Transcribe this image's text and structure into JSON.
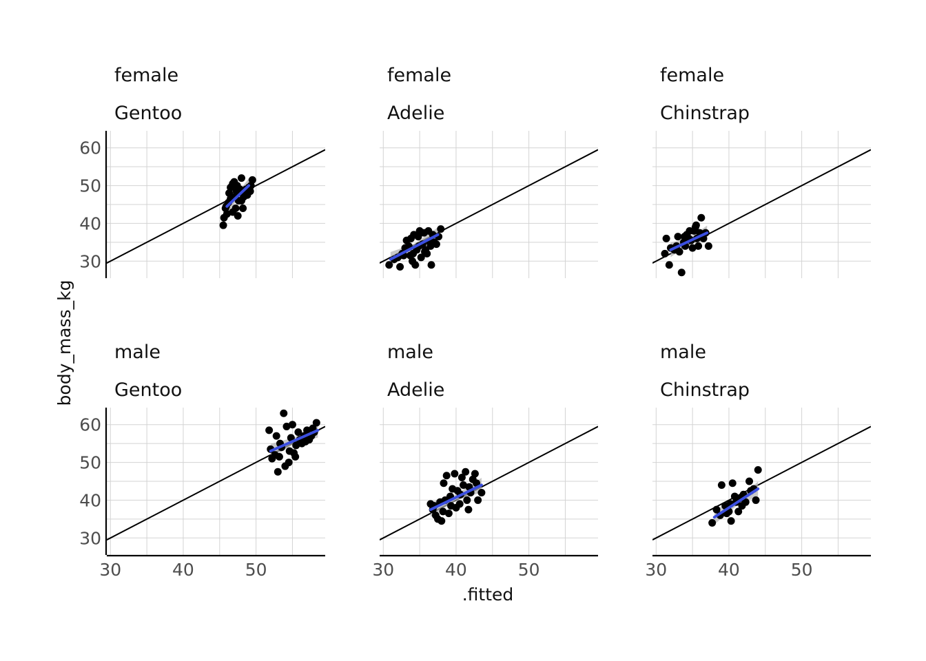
{
  "chart_data": {
    "type": "scatter",
    "xlabel": ".fitted",
    "ylabel": "body_mass_kg",
    "xlim": [
      29.5,
      59.5
    ],
    "ylim": [
      25.5,
      64.5
    ],
    "x_ticks": [
      30,
      40,
      50
    ],
    "y_ticks": [
      30,
      40,
      50,
      60
    ],
    "reference_line": {
      "slope": 1,
      "intercept": 0
    },
    "grid": true,
    "colors": {
      "points": "#000000",
      "fit": "#3b4fe0",
      "band": "#b0b0b0",
      "reference": "#000000"
    },
    "panels": [
      {
        "sex": "female",
        "species": "Gentoo",
        "fit": {
          "x": [
            46.0,
            49.0
          ],
          "y": [
            44.5,
            50.0
          ]
        },
        "points": [
          [
            45.5,
            39.5
          ],
          [
            45.6,
            41.5
          ],
          [
            45.8,
            44.0
          ],
          [
            46.2,
            45.5
          ],
          [
            46.5,
            46.5
          ],
          [
            46.0,
            42.5
          ],
          [
            46.8,
            43.0
          ],
          [
            47.2,
            44.0
          ],
          [
            47.5,
            42.0
          ],
          [
            46.5,
            49.5
          ],
          [
            46.8,
            50.5
          ],
          [
            47.0,
            51.0
          ],
          [
            47.4,
            50.0
          ],
          [
            47.8,
            49.0
          ],
          [
            48.0,
            46.0
          ],
          [
            48.3,
            47.0
          ],
          [
            48.0,
            52.0
          ],
          [
            48.5,
            48.5
          ],
          [
            48.8,
            47.5
          ],
          [
            49.0,
            49.5
          ],
          [
            49.3,
            50.0
          ],
          [
            49.5,
            51.5
          ],
          [
            49.2,
            48.5
          ],
          [
            47.0,
            47.0
          ],
          [
            47.6,
            46.0
          ],
          [
            48.2,
            44.0
          ],
          [
            46.3,
            48.0
          ],
          [
            47.3,
            48.5
          ],
          [
            45.9,
            44.5
          ],
          [
            48.6,
            49.0
          ]
        ]
      },
      {
        "sex": "female",
        "species": "Adelie",
        "fit": {
          "x": [
            31.0,
            37.5
          ],
          "y": [
            30.5,
            37.0
          ]
        },
        "points": [
          [
            30.8,
            29.0
          ],
          [
            31.5,
            30.5
          ],
          [
            32.0,
            31.0
          ],
          [
            32.3,
            28.5
          ],
          [
            32.6,
            32.0
          ],
          [
            33.0,
            33.5
          ],
          [
            33.2,
            35.5
          ],
          [
            33.5,
            34.0
          ],
          [
            33.7,
            31.5
          ],
          [
            34.0,
            30.0
          ],
          [
            34.2,
            37.0
          ],
          [
            34.4,
            29.0
          ],
          [
            34.6,
            33.0
          ],
          [
            34.8,
            36.5
          ],
          [
            35.0,
            38.0
          ],
          [
            35.2,
            31.0
          ],
          [
            35.4,
            34.5
          ],
          [
            35.6,
            37.5
          ],
          [
            35.8,
            33.0
          ],
          [
            36.0,
            32.0
          ],
          [
            36.2,
            38.0
          ],
          [
            36.4,
            35.0
          ],
          [
            36.6,
            29.0
          ],
          [
            36.8,
            37.0
          ],
          [
            37.0,
            35.0
          ],
          [
            37.3,
            34.5
          ],
          [
            37.6,
            36.5
          ],
          [
            37.9,
            38.5
          ],
          [
            33.8,
            36.0
          ],
          [
            34.9,
            34.0
          ],
          [
            35.7,
            32.5
          ],
          [
            34.1,
            32.0
          ],
          [
            32.8,
            31.5
          ],
          [
            36.5,
            34.0
          ]
        ]
      },
      {
        "sex": "female",
        "species": "Chinstrap",
        "fit": {
          "x": [
            32.0,
            37.0
          ],
          "y": [
            33.0,
            37.5
          ]
        },
        "points": [
          [
            31.2,
            32.0
          ],
          [
            31.4,
            36.0
          ],
          [
            31.8,
            29.0
          ],
          [
            32.0,
            33.5
          ],
          [
            32.5,
            33.0
          ],
          [
            33.0,
            36.5
          ],
          [
            33.2,
            32.5
          ],
          [
            33.5,
            27.0
          ],
          [
            33.8,
            35.0
          ],
          [
            34.0,
            34.0
          ],
          [
            34.2,
            37.0
          ],
          [
            34.5,
            36.0
          ],
          [
            34.8,
            35.5
          ],
          [
            35.0,
            33.5
          ],
          [
            35.2,
            38.0
          ],
          [
            35.4,
            39.0
          ],
          [
            35.6,
            36.0
          ],
          [
            35.8,
            34.0
          ],
          [
            36.0,
            37.5
          ],
          [
            36.2,
            41.5
          ],
          [
            36.5,
            36.0
          ],
          [
            36.8,
            37.5
          ],
          [
            37.2,
            34.0
          ],
          [
            34.6,
            38.0
          ],
          [
            35.5,
            39.5
          ],
          [
            33.9,
            36.5
          ],
          [
            32.8,
            34.0
          ]
        ]
      },
      {
        "sex": "male",
        "species": "Gentoo",
        "fit": {
          "x": [
            52.0,
            58.5
          ],
          "y": [
            53.0,
            58.5
          ]
        },
        "points": [
          [
            51.8,
            58.5
          ],
          [
            52.0,
            53.5
          ],
          [
            52.2,
            51.0
          ],
          [
            52.6,
            52.0
          ],
          [
            52.8,
            57.0
          ],
          [
            53.0,
            47.5
          ],
          [
            53.2,
            51.5
          ],
          [
            53.5,
            54.0
          ],
          [
            53.8,
            63.0
          ],
          [
            54.0,
            49.0
          ],
          [
            54.2,
            59.5
          ],
          [
            54.5,
            50.0
          ],
          [
            54.8,
            56.5
          ],
          [
            55.0,
            60.0
          ],
          [
            55.2,
            52.5
          ],
          [
            55.5,
            54.5
          ],
          [
            55.8,
            58.0
          ],
          [
            56.0,
            56.0
          ],
          [
            56.3,
            55.0
          ],
          [
            56.6,
            57.0
          ],
          [
            57.0,
            58.5
          ],
          [
            57.3,
            56.0
          ],
          [
            57.6,
            57.0
          ],
          [
            58.0,
            58.0
          ],
          [
            58.3,
            60.5
          ],
          [
            53.3,
            55.0
          ],
          [
            54.6,
            53.0
          ],
          [
            55.4,
            51.5
          ],
          [
            56.8,
            55.5
          ],
          [
            57.8,
            59.0
          ]
        ]
      },
      {
        "sex": "male",
        "species": "Adelie",
        "fit": {
          "x": [
            36.5,
            43.5
          ],
          "y": [
            37.5,
            44.0
          ]
        },
        "points": [
          [
            36.5,
            39.0
          ],
          [
            36.8,
            37.5
          ],
          [
            37.2,
            36.0
          ],
          [
            37.5,
            35.0
          ],
          [
            37.8,
            39.5
          ],
          [
            38.0,
            34.5
          ],
          [
            38.3,
            44.5
          ],
          [
            38.5,
            40.0
          ],
          [
            38.7,
            46.5
          ],
          [
            39.0,
            36.5
          ],
          [
            39.2,
            41.0
          ],
          [
            39.5,
            43.0
          ],
          [
            39.8,
            47.0
          ],
          [
            40.0,
            38.0
          ],
          [
            40.2,
            42.5
          ],
          [
            40.5,
            39.0
          ],
          [
            40.8,
            46.0
          ],
          [
            41.0,
            44.0
          ],
          [
            41.3,
            47.5
          ],
          [
            41.5,
            40.0
          ],
          [
            41.7,
            37.5
          ],
          [
            42.0,
            42.0
          ],
          [
            42.3,
            45.5
          ],
          [
            42.6,
            47.0
          ],
          [
            43.0,
            40.0
          ],
          [
            43.5,
            42.0
          ],
          [
            39.3,
            38.5
          ],
          [
            40.6,
            41.5
          ],
          [
            41.8,
            43.5
          ],
          [
            38.2,
            37.0
          ],
          [
            42.8,
            44.5
          ],
          [
            37.0,
            38.5
          ]
        ]
      },
      {
        "sex": "male",
        "species": "Chinstrap",
        "fit": {
          "x": [
            38.0,
            44.0
          ],
          "y": [
            35.5,
            43.0
          ]
        },
        "points": [
          [
            37.7,
            34.0
          ],
          [
            38.3,
            37.5
          ],
          [
            38.8,
            36.0
          ],
          [
            39.0,
            44.0
          ],
          [
            39.5,
            38.5
          ],
          [
            40.0,
            37.0
          ],
          [
            40.3,
            34.5
          ],
          [
            40.5,
            44.5
          ],
          [
            40.8,
            41.0
          ],
          [
            41.0,
            39.5
          ],
          [
            41.3,
            37.0
          ],
          [
            41.5,
            40.5
          ],
          [
            42.0,
            41.5
          ],
          [
            42.3,
            39.5
          ],
          [
            42.8,
            45.0
          ],
          [
            43.0,
            42.5
          ],
          [
            43.4,
            43.0
          ],
          [
            43.7,
            40.0
          ],
          [
            44.0,
            48.0
          ],
          [
            40.2,
            39.0
          ],
          [
            41.8,
            38.5
          ],
          [
            39.7,
            36.5
          ]
        ]
      }
    ]
  }
}
